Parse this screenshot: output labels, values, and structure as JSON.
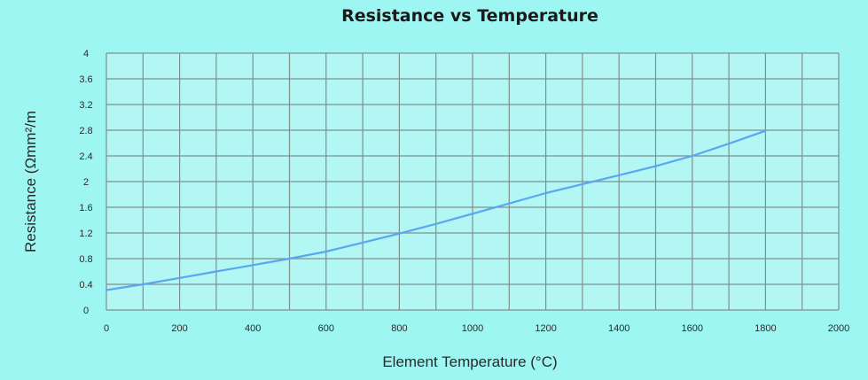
{
  "colors": {
    "page_background": "#9ef6f2",
    "plot_background": "#b2f7f4",
    "grid": "#7f8f8e",
    "series_line": "#5aa6f0"
  },
  "chart_data": {
    "type": "line",
    "title": "Resistance vs Temperature",
    "xlabel": "Element Temperature (°C)",
    "ylabel": "Resistance (Ωmm²/m",
    "xlim": [
      0,
      2000
    ],
    "ylim": [
      0,
      4
    ],
    "grid": true,
    "x_ticks": [
      0,
      200,
      400,
      600,
      800,
      1000,
      1200,
      1400,
      1600,
      1800,
      2000
    ],
    "x_tick_labels": [
      "0",
      "200",
      "400",
      "600",
      "800",
      "1000",
      "1200",
      "1400",
      "1600",
      "1800",
      "2000"
    ],
    "y_ticks": [
      0,
      0.4,
      0.8,
      1.2,
      1.6,
      2,
      2.4,
      2.8,
      3.2,
      3.6,
      4
    ],
    "y_tick_labels": [
      "0",
      "0.4",
      "0.8",
      "1.2",
      "1.6",
      "2",
      "2.4",
      "2.8",
      "3.2",
      "3.6",
      "4"
    ],
    "series": [
      {
        "x": [
          0,
          100,
          200,
          300,
          400,
          500,
          600,
          700,
          800,
          900,
          1000,
          1100,
          1200,
          1300,
          1400,
          1500,
          1600,
          1700,
          1800
        ],
        "values": [
          0.31,
          0.4,
          0.5,
          0.6,
          0.7,
          0.8,
          0.91,
          1.05,
          1.19,
          1.34,
          1.5,
          1.66,
          1.82,
          1.96,
          2.1,
          2.24,
          2.4,
          2.59,
          2.79
        ]
      }
    ]
  }
}
